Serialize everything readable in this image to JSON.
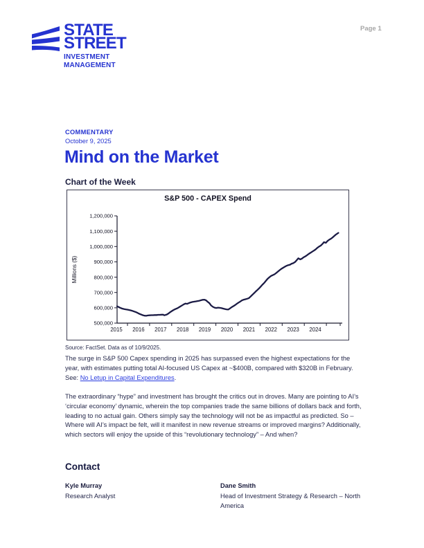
{
  "page": {
    "number_label": "Page 1"
  },
  "logo": {
    "line1": "STATE",
    "line2": "STREET",
    "line3": "INVESTMENT",
    "line4": "MANAGEMENT",
    "color": "#2533d0"
  },
  "header": {
    "eyebrow": "COMMENTARY",
    "date": "October 9, 2025",
    "title": "Mind on the Market",
    "accent_color": "#2533d0"
  },
  "section": {
    "heading": "Chart of the Week"
  },
  "chart_data": {
    "type": "line",
    "title": "S&P 500 - CAPEX Spend",
    "ylabel": "Millions ($)",
    "values_unit": "USD millions",
    "ylim": [
      500000,
      1200000
    ],
    "ytick_step": 100000,
    "ytick_labels": [
      "500,000",
      "600,000",
      "700,000",
      "800,000",
      "900,000",
      "1,000,000",
      "1,100,000",
      "1,200,000"
    ],
    "xtick_labels": [
      "2015",
      "2016",
      "2017",
      "2018",
      "2019",
      "2020",
      "2021",
      "2022",
      "2023",
      "2024"
    ],
    "x_domain": [
      2015,
      2025.8
    ],
    "grid": false,
    "legend": "none",
    "line_color": "#1b1b45",
    "axis_color": "#1a1a2e",
    "series": [
      {
        "name": "S&P 500 CAPEX Spend",
        "points": [
          [
            2015.0,
            610000
          ],
          [
            2015.08,
            605000
          ],
          [
            2015.17,
            599000
          ],
          [
            2015.25,
            595000
          ],
          [
            2015.33,
            592000
          ],
          [
            2015.42,
            590000
          ],
          [
            2015.5,
            588000
          ],
          [
            2015.58,
            586000
          ],
          [
            2015.67,
            583000
          ],
          [
            2015.75,
            580000
          ],
          [
            2015.83,
            576000
          ],
          [
            2015.92,
            572000
          ],
          [
            2016.0,
            567000
          ],
          [
            2016.08,
            561000
          ],
          [
            2016.17,
            556000
          ],
          [
            2016.25,
            552000
          ],
          [
            2016.33,
            549000
          ],
          [
            2016.42,
            548000
          ],
          [
            2016.5,
            550000
          ],
          [
            2016.58,
            551000
          ],
          [
            2016.67,
            552000
          ],
          [
            2016.75,
            552000
          ],
          [
            2016.83,
            553000
          ],
          [
            2016.92,
            553000
          ],
          [
            2017.0,
            554000
          ],
          [
            2017.08,
            554000
          ],
          [
            2017.17,
            555000
          ],
          [
            2017.25,
            555000
          ],
          [
            2017.3,
            551000
          ],
          [
            2017.42,
            556000
          ],
          [
            2017.5,
            563000
          ],
          [
            2017.58,
            571000
          ],
          [
            2017.67,
            579000
          ],
          [
            2017.75,
            586000
          ],
          [
            2017.83,
            591000
          ],
          [
            2017.92,
            596000
          ],
          [
            2018.0,
            602000
          ],
          [
            2018.08,
            609000
          ],
          [
            2018.17,
            616000
          ],
          [
            2018.25,
            623000
          ],
          [
            2018.33,
            628000
          ],
          [
            2018.42,
            626000
          ],
          [
            2018.5,
            631000
          ],
          [
            2018.58,
            635000
          ],
          [
            2018.67,
            638000
          ],
          [
            2018.75,
            640000
          ],
          [
            2018.83,
            642000
          ],
          [
            2018.92,
            644000
          ],
          [
            2019.0,
            646000
          ],
          [
            2019.08,
            649000
          ],
          [
            2019.17,
            652000
          ],
          [
            2019.25,
            653000
          ],
          [
            2019.33,
            649000
          ],
          [
            2019.42,
            638000
          ],
          [
            2019.5,
            630000
          ],
          [
            2019.58,
            615000
          ],
          [
            2019.67,
            606000
          ],
          [
            2019.75,
            601000
          ],
          [
            2019.83,
            599000
          ],
          [
            2019.92,
            601000
          ],
          [
            2020.0,
            600000
          ],
          [
            2020.08,
            598000
          ],
          [
            2020.17,
            595000
          ],
          [
            2020.25,
            592000
          ],
          [
            2020.33,
            590000
          ],
          [
            2020.42,
            589000
          ],
          [
            2020.5,
            596000
          ],
          [
            2020.58,
            604000
          ],
          [
            2020.67,
            611000
          ],
          [
            2020.75,
            618000
          ],
          [
            2020.83,
            626000
          ],
          [
            2020.92,
            634000
          ],
          [
            2021.0,
            641000
          ],
          [
            2021.08,
            648000
          ],
          [
            2021.17,
            653000
          ],
          [
            2021.25,
            656000
          ],
          [
            2021.33,
            659000
          ],
          [
            2021.42,
            663000
          ],
          [
            2021.5,
            673000
          ],
          [
            2021.58,
            684000
          ],
          [
            2021.67,
            695000
          ],
          [
            2021.75,
            706000
          ],
          [
            2021.83,
            716000
          ],
          [
            2021.92,
            727000
          ],
          [
            2022.0,
            739000
          ],
          [
            2022.08,
            751000
          ],
          [
            2022.17,
            763000
          ],
          [
            2022.25,
            776000
          ],
          [
            2022.33,
            789000
          ],
          [
            2022.42,
            800000
          ],
          [
            2022.5,
            808000
          ],
          [
            2022.58,
            813000
          ],
          [
            2022.67,
            819000
          ],
          [
            2022.75,
            827000
          ],
          [
            2022.83,
            836000
          ],
          [
            2022.92,
            846000
          ],
          [
            2023.0,
            854000
          ],
          [
            2023.08,
            861000
          ],
          [
            2023.17,
            868000
          ],
          [
            2023.25,
            874000
          ],
          [
            2023.33,
            878000
          ],
          [
            2023.42,
            881000
          ],
          [
            2023.5,
            888000
          ],
          [
            2023.58,
            891000
          ],
          [
            2023.67,
            899000
          ],
          [
            2023.75,
            911000
          ],
          [
            2023.83,
            923000
          ],
          [
            2023.92,
            916000
          ],
          [
            2024.0,
            921000
          ],
          [
            2024.08,
            929000
          ],
          [
            2024.17,
            936000
          ],
          [
            2024.25,
            943000
          ],
          [
            2024.33,
            951000
          ],
          [
            2024.42,
            959000
          ],
          [
            2024.5,
            966000
          ],
          [
            2024.58,
            973000
          ],
          [
            2024.67,
            981000
          ],
          [
            2024.75,
            991000
          ],
          [
            2024.83,
            999000
          ],
          [
            2024.92,
            1006000
          ],
          [
            2025.0,
            1016000
          ],
          [
            2025.08,
            1029000
          ],
          [
            2025.17,
            1024000
          ],
          [
            2025.25,
            1036000
          ],
          [
            2025.33,
            1044000
          ],
          [
            2025.42,
            1051000
          ],
          [
            2025.5,
            1059000
          ],
          [
            2025.58,
            1069000
          ],
          [
            2025.67,
            1079000
          ],
          [
            2025.78,
            1089000
          ]
        ]
      }
    ],
    "source": "Source: FactSet. Data as of 10/9/2025."
  },
  "chart_meta": {
    "source_note": "Source: FactSet. Data as of 10/9/2025."
  },
  "body": {
    "para1_before": "The surge in S&P 500 Capex spending in 2025 has surpassed even the highest expectations for the year, with estimates putting total AI-focused US Capex at ~$400B, compared with $320B in February. See: ",
    "para1_link": "No Letup in Capital Expenditures",
    "para1_after": ".",
    "para2": "The extraordinary “hype” and investment has brought the critics out in droves. Many are pointing to AI’s ‘circular economy’ dynamic, wherein the top companies trade the same billions of dollars back and forth, leading to no actual gain. Others simply say the technology will not be as impactful as predicted. So – Where will AI’s impact be felt, will it manifest in new revenue streams or improved margins? Additionally, which sectors will enjoy the upside of this “revolutionary technology” – And when?"
  },
  "contact": {
    "heading": "Contact",
    "people": [
      {
        "name": "Kyle Murray",
        "title": "Research Analyst"
      },
      {
        "name": "Dane Smith",
        "title": "Head of Investment Strategy & Research – North America"
      }
    ]
  }
}
